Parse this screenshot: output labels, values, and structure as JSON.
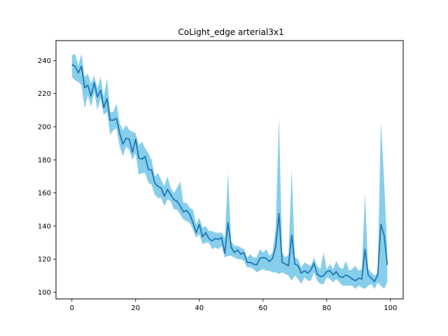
{
  "chart_data": {
    "type": "line",
    "title": "CoLight_edge arterial3x1",
    "xlabel": "",
    "ylabel": "",
    "xlim": [
      -5,
      104
    ],
    "ylim": [
      96,
      252
    ],
    "xticks": [
      0,
      20,
      40,
      60,
      80,
      100
    ],
    "yticks": [
      100,
      120,
      140,
      160,
      180,
      200,
      220,
      240
    ],
    "grid": false,
    "colors": {
      "line": "#1f77b4",
      "band": "#87ceeb"
    },
    "series": [
      {
        "x": [
          0,
          1,
          2,
          3,
          4,
          5,
          6,
          7,
          8,
          9,
          10,
          11,
          12,
          13,
          14,
          15,
          16,
          17,
          18,
          19,
          20,
          21,
          22,
          23,
          24,
          25,
          26,
          27,
          28,
          29,
          30,
          31,
          32,
          33,
          34,
          35,
          36,
          37,
          38,
          39,
          40,
          41,
          42,
          43,
          44,
          45,
          46,
          47,
          48,
          49,
          50,
          51,
          52,
          53,
          54,
          55,
          56,
          57,
          58,
          59,
          60,
          61,
          62,
          63,
          64,
          65,
          66,
          67,
          68,
          69,
          70,
          71,
          72,
          73,
          74,
          75,
          76,
          77,
          78,
          79,
          80,
          81,
          82,
          83,
          84,
          85,
          86,
          87,
          88,
          89,
          90,
          91,
          92,
          93,
          94,
          95,
          96,
          97,
          98,
          99
        ],
        "values": [
          237.5,
          236.5,
          232.5,
          236.5,
          223.5,
          225,
          218.5,
          226.5,
          218,
          222,
          211.5,
          217,
          204,
          204,
          205,
          196,
          189.5,
          193,
          192.5,
          184.5,
          192.5,
          181,
          180.5,
          182,
          174,
          174,
          166,
          164,
          163,
          158,
          162,
          159,
          156,
          155,
          152,
          148.5,
          149.5,
          147,
          142,
          136,
          141,
          133.5,
          136,
          132.5,
          131,
          132.5,
          132,
          133,
          123.5,
          142,
          127,
          124,
          125.5,
          123,
          124,
          118,
          118,
          117,
          116.5,
          120.5,
          121,
          120.5,
          118.5,
          120.5,
          128,
          147.5,
          118,
          117,
          116,
          134.5,
          117,
          116,
          111.5,
          113,
          111.5,
          113.5,
          117.5,
          111,
          109.5,
          110,
          112.5,
          113,
          110.5,
          112.5,
          109.5,
          109,
          110.5,
          109.5,
          108,
          107,
          108.5,
          108,
          126,
          110.5,
          108.5,
          106.5,
          110.5,
          141,
          134.5,
          116.5
        ],
        "upper": [
          243,
          244,
          237,
          244,
          230,
          232,
          226,
          231,
          223,
          230,
          218,
          229,
          209,
          209,
          214,
          202,
          198,
          201,
          198,
          197,
          196,
          189,
          191,
          187,
          184,
          180,
          170,
          172,
          168,
          164,
          170,
          163,
          160,
          163,
          167,
          154,
          154,
          151,
          150,
          141,
          145,
          139,
          140,
          137,
          137,
          136,
          136,
          136,
          133,
          172,
          131,
          128,
          128,
          127,
          126,
          121,
          123,
          121,
          121,
          126,
          124,
          126,
          122,
          124,
          139,
          206,
          124,
          121,
          123,
          174,
          121,
          120,
          115,
          118,
          117,
          116,
          121,
          116,
          114,
          124,
          114,
          117,
          114,
          119,
          115,
          114,
          119,
          113,
          114,
          116,
          113,
          114,
          160,
          114,
          112,
          110,
          112,
          203,
          168,
          125
        ],
        "lower": [
          230,
          228,
          227,
          225,
          211,
          219,
          212,
          221,
          210,
          217,
          207,
          209,
          195,
          198,
          199,
          188,
          182,
          188,
          186,
          180,
          184,
          171,
          172,
          172,
          166,
          165,
          159,
          157,
          157,
          152,
          156,
          155,
          150,
          150,
          147,
          144,
          143,
          142,
          138,
          133,
          135,
          129,
          130,
          130,
          126,
          127,
          126,
          128,
          121,
          122,
          122,
          121,
          120,
          120,
          119,
          115,
          115,
          114,
          112,
          113,
          114,
          113,
          113,
          112,
          112,
          111,
          112,
          111,
          110,
          107,
          110,
          108,
          105,
          109,
          107,
          107,
          112,
          107,
          105,
          105,
          109,
          108,
          106,
          108,
          106,
          104,
          104,
          104,
          104,
          102,
          104,
          103,
          102,
          104,
          105,
          102,
          106,
          104,
          102,
          106
        ]
      }
    ]
  }
}
